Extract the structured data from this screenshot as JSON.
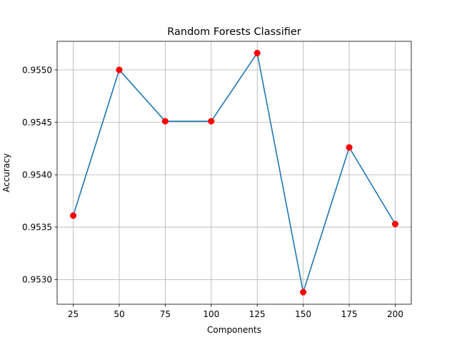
{
  "chart_data": {
    "type": "line",
    "title": "Random Forests Classifier",
    "xlabel": "Components",
    "ylabel": "Accuracy",
    "x": [
      25,
      50,
      75,
      100,
      125,
      150,
      175,
      200
    ],
    "series": [
      {
        "values": [
          0.95361,
          0.955,
          0.95451,
          0.95451,
          0.95516,
          0.95288,
          0.95426,
          0.95353
        ],
        "line_color": "#1f77b4",
        "marker_color": "#ff0000",
        "marker": "circle"
      }
    ],
    "xticks": [
      25,
      50,
      75,
      100,
      125,
      150,
      175,
      200
    ],
    "xtick_labels": [
      "25",
      "50",
      "75",
      "100",
      "125",
      "150",
      "175",
      "200"
    ],
    "yticks": [
      0.953,
      0.9535,
      0.954,
      0.9545,
      0.955
    ],
    "ytick_labels": [
      "0.9530",
      "0.9535",
      "0.9540",
      "0.9545",
      "0.9550"
    ],
    "xlim": [
      16.25,
      208.75
    ],
    "ylim": [
      0.952765,
      0.955272
    ],
    "grid": true,
    "legend": false
  }
}
